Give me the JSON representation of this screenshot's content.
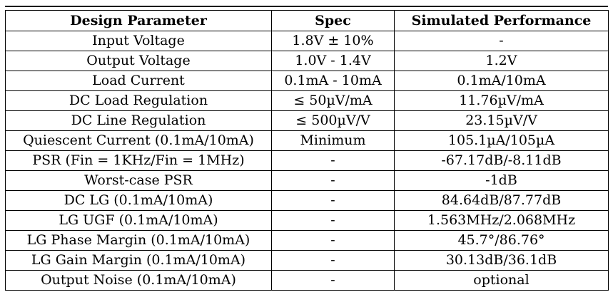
{
  "table": {
    "headers": [
      "Design Parameter",
      "Spec",
      "Simulated Performance"
    ],
    "rows": [
      [
        "Input Voltage",
        "1.8V ± 10%",
        "-"
      ],
      [
        "Output Voltage",
        "1.0V - 1.4V",
        "1.2V"
      ],
      [
        "Load Current",
        "0.1mA - 10mA",
        "0.1mA/10mA"
      ],
      [
        "DC Load Regulation",
        "≤ 50µV/mA",
        "11.76µV/mA"
      ],
      [
        "DC Line Regulation",
        "≤ 500µV/V",
        "23.15µV/V"
      ],
      [
        "Quiescent Current (0.1mA/10mA)",
        "Minimum",
        "105.1µA/105µA"
      ],
      [
        "PSR (Fin = 1KHz/Fin = 1MHz)",
        "-",
        "-67.17dB/-8.11dB"
      ],
      [
        "Worst-case PSR",
        "-",
        "-1dB"
      ],
      [
        "DC LG (0.1mA/10mA)",
        "-",
        "84.64dB/87.77dB"
      ],
      [
        "LG UGF (0.1mA/10mA)",
        "-",
        "1.563MHz/2.068MHz"
      ],
      [
        "LG Phase Margin (0.1mA/10mA)",
        "-",
        "45.7°/86.76°"
      ],
      [
        "LG Gain Margin (0.1mA/10mA)",
        "-",
        "30.13dB/36.1dB"
      ],
      [
        "Output Noise (0.1mA/10mA)",
        "-",
        "optional"
      ]
    ]
  }
}
